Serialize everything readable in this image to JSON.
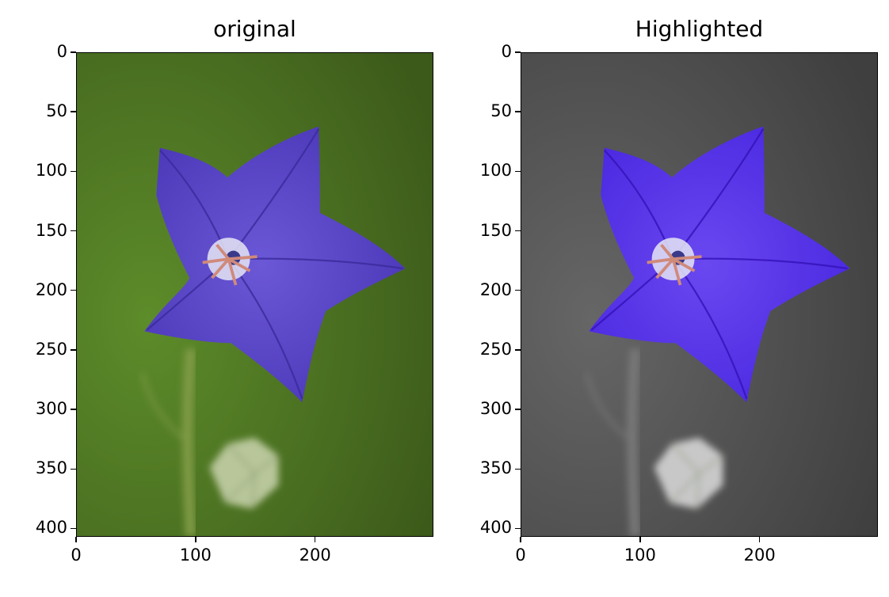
{
  "figure": {
    "panels": [
      {
        "title": "original",
        "style": "color",
        "colors": {
          "bg_light": "#5d8c2a",
          "bg_dark": "#3c5a1a",
          "petal": "#6b58d6",
          "petal_dark": "#4b38b8",
          "vein": "#3a2a9a",
          "stem": "#7f9a45",
          "bud": "#b8c69a"
        }
      },
      {
        "title": "Highlighted",
        "style": "grayscale-highlight",
        "colors": {
          "bg_light": "#666666",
          "bg_dark": "#3f3f3f",
          "petal": "#6a48f0",
          "petal_dark": "#4a28e0",
          "vein": "#3411b8",
          "stem": "#777777",
          "bud": "#c8c8c8"
        }
      }
    ],
    "axes": {
      "y_ticks": [
        "0",
        "50",
        "100",
        "150",
        "200",
        "250",
        "300",
        "350",
        "400"
      ],
      "x_ticks": [
        "0",
        "100",
        "200"
      ],
      "x_range": [
        0,
        299
      ],
      "y_range": [
        0,
        407
      ]
    }
  }
}
